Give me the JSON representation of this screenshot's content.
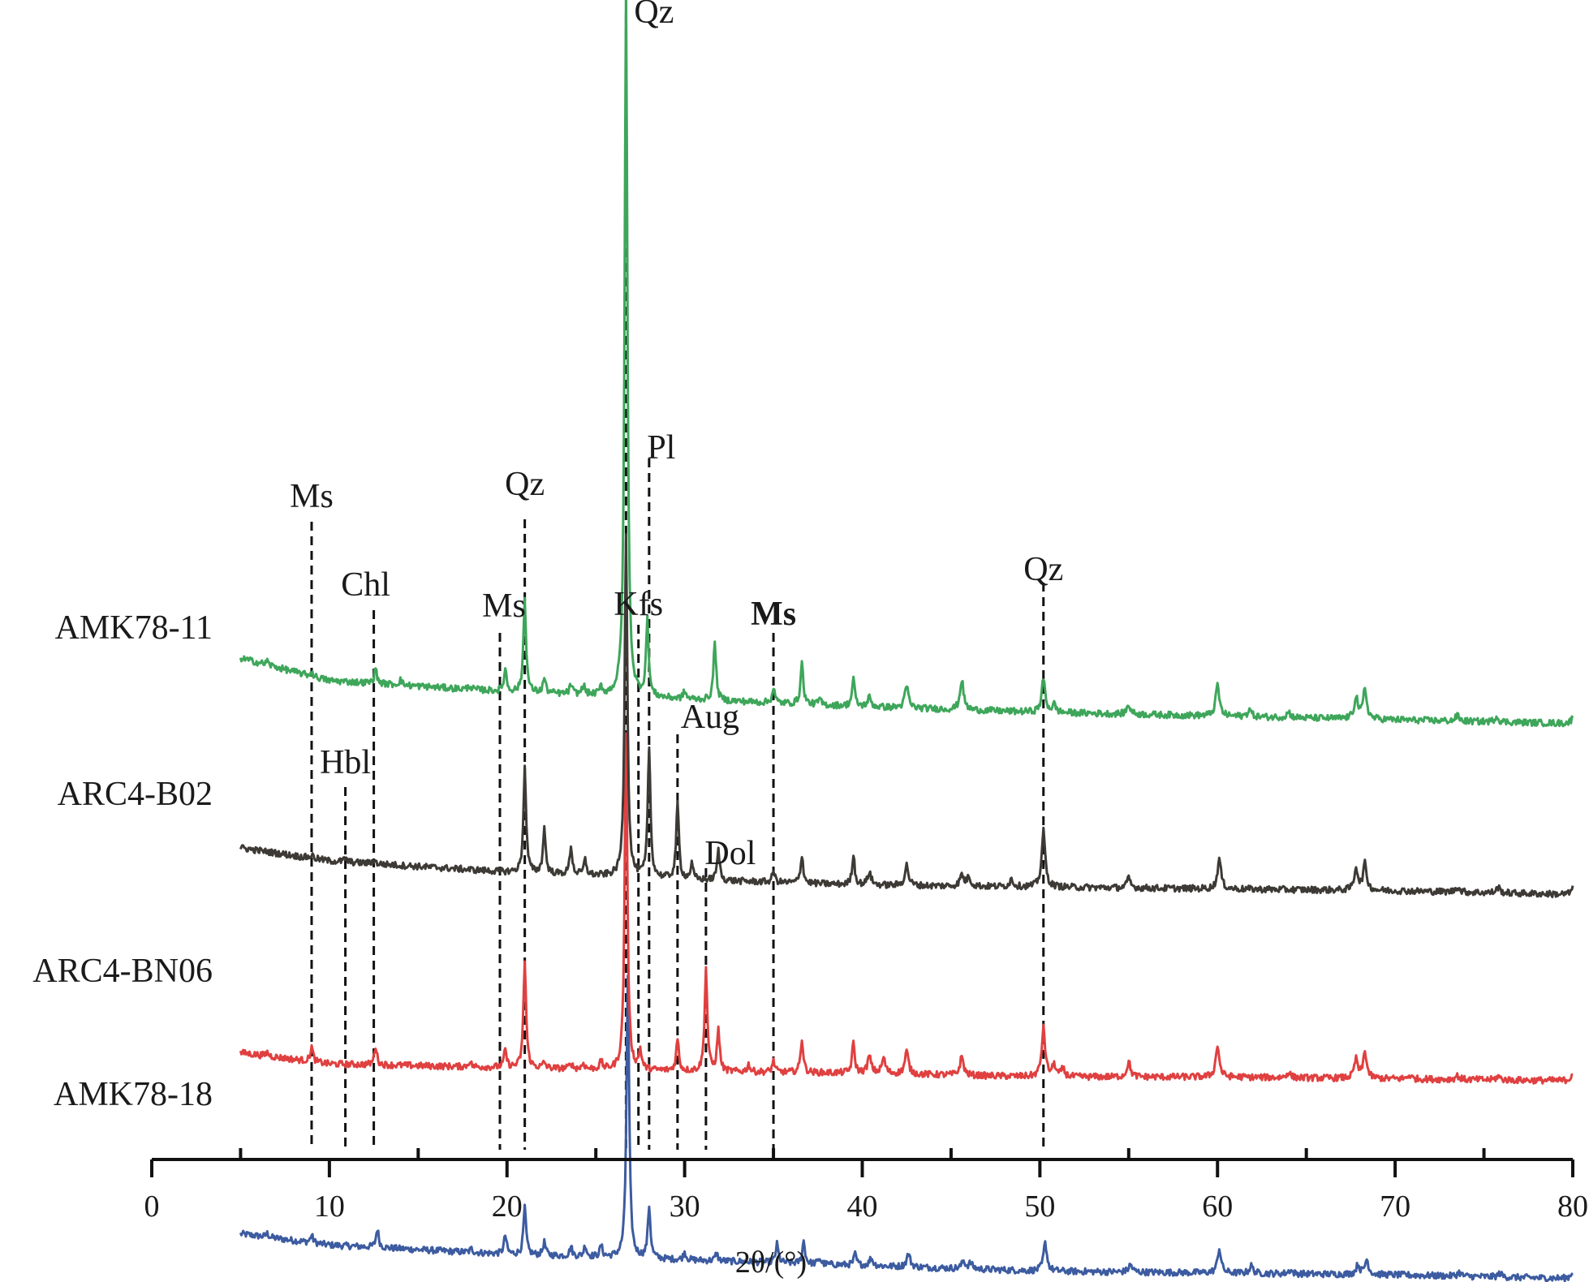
{
  "chart_data": {
    "type": "line",
    "title": "",
    "xlabel": "2θ/(°)",
    "ylabel": "",
    "xlim": [
      0,
      80
    ],
    "xticks": [
      0,
      10,
      20,
      30,
      40,
      50,
      60,
      70,
      80
    ],
    "minor_ticks": [
      5,
      15,
      25,
      35,
      45,
      55,
      65,
      75
    ],
    "grid": false,
    "legend": "none",
    "series": [
      {
        "name": "AMK78-11",
        "color": "#3ea65a",
        "baseline": [
          [
            5,
            0.56
          ],
          [
            10,
            0.44
          ],
          [
            20,
            0.38
          ],
          [
            30,
            0.34
          ],
          [
            40,
            0.3
          ],
          [
            50,
            0.27
          ],
          [
            60,
            0.25
          ],
          [
            70,
            0.23
          ],
          [
            80,
            0.21
          ]
        ],
        "peaks": [
          [
            6.5,
            0.02
          ],
          [
            9.0,
            0.02
          ],
          [
            12.6,
            0.08
          ],
          [
            14.0,
            0.03
          ],
          [
            17.9,
            0.02
          ],
          [
            19.9,
            0.12
          ],
          [
            21.0,
            0.5
          ],
          [
            22.1,
            0.08
          ],
          [
            23.6,
            0.05
          ],
          [
            24.3,
            0.05
          ],
          [
            25.3,
            0.04
          ],
          [
            26.7,
            3.8
          ],
          [
            27.9,
            0.4
          ],
          [
            30.0,
            0.04
          ],
          [
            31.7,
            0.31
          ],
          [
            35.0,
            0.08
          ],
          [
            36.6,
            0.22
          ],
          [
            37.6,
            0.03
          ],
          [
            39.5,
            0.15
          ],
          [
            40.4,
            0.05
          ],
          [
            42.5,
            0.12
          ],
          [
            45.6,
            0.16
          ],
          [
            50.2,
            0.18
          ],
          [
            50.8,
            0.04
          ],
          [
            55.0,
            0.05
          ],
          [
            60.0,
            0.17
          ],
          [
            61.8,
            0.04
          ],
          [
            64.0,
            0.03
          ],
          [
            67.8,
            0.12
          ],
          [
            68.3,
            0.16
          ],
          [
            73.5,
            0.03
          ],
          [
            75.7,
            0.03
          ],
          [
            80.0,
            0.03
          ]
        ]
      },
      {
        "name": "ARC4-B02",
        "color": "#3d3a36",
        "baseline": [
          [
            5,
            0.37
          ],
          [
            10,
            0.3
          ],
          [
            20,
            0.24
          ],
          [
            30,
            0.2
          ],
          [
            40,
            0.17
          ],
          [
            50,
            0.16
          ],
          [
            60,
            0.15
          ],
          [
            70,
            0.14
          ],
          [
            80,
            0.12
          ]
        ],
        "peaks": [
          [
            9.0,
            0.02
          ],
          [
            10.9,
            0.02
          ],
          [
            12.5,
            0.02
          ],
          [
            21.0,
            0.56
          ],
          [
            22.1,
            0.24
          ],
          [
            23.6,
            0.15
          ],
          [
            24.4,
            0.08
          ],
          [
            26.7,
            1.85
          ],
          [
            28.0,
            0.7
          ],
          [
            29.6,
            0.4
          ],
          [
            30.4,
            0.08
          ],
          [
            31.9,
            0.16
          ],
          [
            35.0,
            0.06
          ],
          [
            36.6,
            0.15
          ],
          [
            39.5,
            0.16
          ],
          [
            40.4,
            0.07
          ],
          [
            42.5,
            0.11
          ],
          [
            45.6,
            0.06
          ],
          [
            46.0,
            0.05
          ],
          [
            48.4,
            0.04
          ],
          [
            50.2,
            0.3
          ],
          [
            55.0,
            0.05
          ],
          [
            60.1,
            0.16
          ],
          [
            67.8,
            0.12
          ],
          [
            68.3,
            0.14
          ],
          [
            73.5,
            0.03
          ],
          [
            75.8,
            0.03
          ],
          [
            80.0,
            0.03
          ]
        ]
      },
      {
        "name": "ARC4-BN06",
        "color": "#e04040",
        "baseline": [
          [
            5,
            0.12
          ],
          [
            10,
            0.06
          ],
          [
            20,
            0.04
          ],
          [
            30,
            0.02
          ],
          [
            40,
            0.01
          ],
          [
            50,
            -0.01
          ],
          [
            60,
            -0.01
          ],
          [
            70,
            -0.02
          ],
          [
            80,
            -0.03
          ]
        ],
        "peaks": [
          [
            6.5,
            0.02
          ],
          [
            9.0,
            0.08
          ],
          [
            12.6,
            0.1
          ],
          [
            17.9,
            0.03
          ],
          [
            19.9,
            0.09
          ],
          [
            21.0,
            0.57
          ],
          [
            22.1,
            0.03
          ],
          [
            23.6,
            0.03
          ],
          [
            24.3,
            0.03
          ],
          [
            25.3,
            0.04
          ],
          [
            26.7,
            1.8
          ],
          [
            27.5,
            0.1
          ],
          [
            29.6,
            0.17
          ],
          [
            31.2,
            0.55
          ],
          [
            31.9,
            0.22
          ],
          [
            33.6,
            0.04
          ],
          [
            35.0,
            0.06
          ],
          [
            36.6,
            0.18
          ],
          [
            39.5,
            0.16
          ],
          [
            40.4,
            0.09
          ],
          [
            41.2,
            0.08
          ],
          [
            42.5,
            0.12
          ],
          [
            45.6,
            0.1
          ],
          [
            50.2,
            0.26
          ],
          [
            50.8,
            0.06
          ],
          [
            51.3,
            0.04
          ],
          [
            55.0,
            0.08
          ],
          [
            60.0,
            0.17
          ],
          [
            64.0,
            0.03
          ],
          [
            67.8,
            0.1
          ],
          [
            68.3,
            0.14
          ],
          [
            70.8,
            0.02
          ],
          [
            73.5,
            0.02
          ],
          [
            75.8,
            0.02
          ],
          [
            80.0,
            0.04
          ]
        ]
      },
      {
        "name": "AMK78-18",
        "color": "#3c5ba0",
        "baseline": [
          [
            5,
            -0.22
          ],
          [
            10,
            -0.28
          ],
          [
            20,
            -0.33
          ],
          [
            30,
            -0.36
          ],
          [
            40,
            -0.39
          ],
          [
            50,
            -0.42
          ],
          [
            60,
            -0.43
          ],
          [
            70,
            -0.44
          ],
          [
            80,
            -0.46
          ]
        ],
        "peaks": [
          [
            6.5,
            0.02
          ],
          [
            9.0,
            0.04
          ],
          [
            12.7,
            0.1
          ],
          [
            18.0,
            0.02
          ],
          [
            19.9,
            0.1
          ],
          [
            21.0,
            0.25
          ],
          [
            22.1,
            0.07
          ],
          [
            23.6,
            0.05
          ],
          [
            24.4,
            0.06
          ],
          [
            25.3,
            0.06
          ],
          [
            26.8,
            1.5
          ],
          [
            28.0,
            0.28
          ],
          [
            30.0,
            0.04
          ],
          [
            31.8,
            0.04
          ],
          [
            35.2,
            0.1
          ],
          [
            36.7,
            0.12
          ],
          [
            37.6,
            0.03
          ],
          [
            39.6,
            0.06
          ],
          [
            40.5,
            0.04
          ],
          [
            42.6,
            0.07
          ],
          [
            45.7,
            0.04
          ],
          [
            46.1,
            0.03
          ],
          [
            50.3,
            0.15
          ],
          [
            55.1,
            0.04
          ],
          [
            60.1,
            0.13
          ],
          [
            61.9,
            0.04
          ],
          [
            64.1,
            0.02
          ],
          [
            67.9,
            0.05
          ],
          [
            68.4,
            0.08
          ],
          [
            73.6,
            0.02
          ],
          [
            75.9,
            0.02
          ],
          [
            80.0,
            0.04
          ]
        ]
      }
    ],
    "sample_labels": [
      "AMK78-11",
      "ARC4-B02",
      "ARC4-BN06",
      "AMK78-18"
    ],
    "annotations": [
      {
        "text": "Ms",
        "x": 9.0,
        "bold": false
      },
      {
        "text": "Hbl",
        "x": 10.9,
        "bold": false
      },
      {
        "text": "Chl",
        "x": 12.5,
        "bold": false
      },
      {
        "text": "Ms",
        "x": 19.6,
        "bold": false
      },
      {
        "text": "Qz",
        "x": 21.0,
        "bold": false
      },
      {
        "text": "Qz",
        "x": 26.7,
        "bold": false
      },
      {
        "text": "Kfs",
        "x": 27.4,
        "bold": false
      },
      {
        "text": "Pl",
        "x": 28.0,
        "bold": false
      },
      {
        "text": "Aug",
        "x": 29.6,
        "bold": false
      },
      {
        "text": "Dol",
        "x": 31.2,
        "bold": false
      },
      {
        "text": "Ms",
        "x": 35.0,
        "bold": true
      },
      {
        "text": "Qz",
        "x": 50.2,
        "bold": false
      }
    ]
  }
}
